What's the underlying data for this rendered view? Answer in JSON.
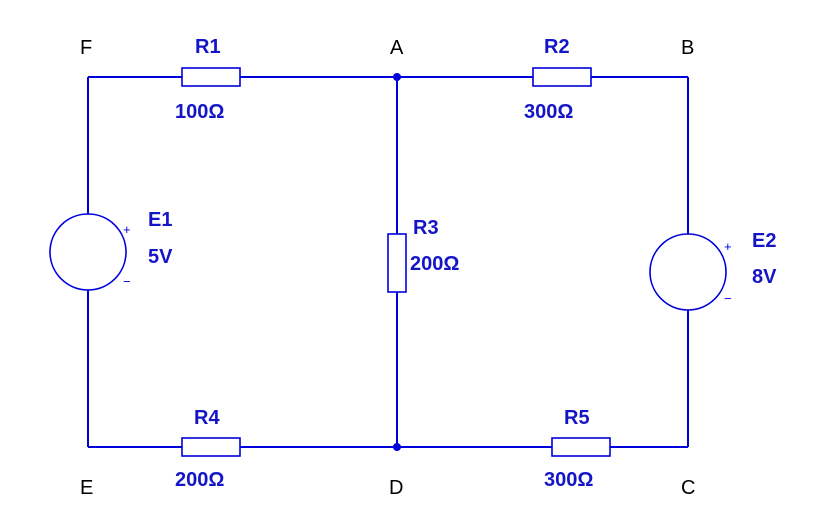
{
  "colors": {
    "wire": "#0000dd",
    "label": "#1515c8",
    "node_label": "#000000",
    "background": "#ffffff"
  },
  "nodes": {
    "A": "A",
    "B": "B",
    "C": "C",
    "D": "D",
    "E": "E",
    "F": "F"
  },
  "resistors": {
    "R1": {
      "name": "R1",
      "value": "100Ω"
    },
    "R2": {
      "name": "R2",
      "value": "300Ω"
    },
    "R3": {
      "name": "R3",
      "value": "200Ω"
    },
    "R4": {
      "name": "R4",
      "value": "200Ω"
    },
    "R5": {
      "name": "R5",
      "value": "300Ω"
    }
  },
  "sources": {
    "E1": {
      "name": "E1",
      "value": "5V",
      "plus": "+",
      "minus": "−"
    },
    "E2": {
      "name": "E2",
      "value": "8V",
      "plus": "+",
      "minus": "−"
    }
  }
}
